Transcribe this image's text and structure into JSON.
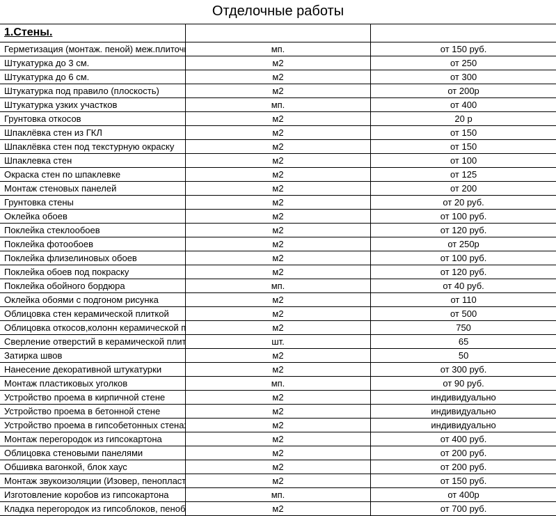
{
  "title": "Отделочные работы",
  "section": "1.Стены.",
  "columns": [
    "name",
    "unit",
    "price"
  ],
  "styling": {
    "background_color": "#ffffff",
    "border_color": "#000000",
    "title_fontsize": 20,
    "section_fontsize": 16,
    "body_fontsize": 13,
    "font_family": "Arial",
    "col_widths_pct": [
      62,
      13,
      25
    ]
  },
  "rows": [
    {
      "name": "Герметизация (монтаж. пеной) меж.плиточных швов",
      "unit": "мп.",
      "price": "от 150 руб."
    },
    {
      "name": "Штукатурка до 3 см.",
      "unit": "м2",
      "price": "от 250"
    },
    {
      "name": "Штукатурка до 6 см.",
      "unit": "м2",
      "price": "от 300"
    },
    {
      "name": "Штукатурка под правило (плоскость)",
      "unit": "м2",
      "price": "от 200р"
    },
    {
      "name": "Штукатурка узких участков",
      "unit": "мп.",
      "price": "от 400"
    },
    {
      "name": "Грунтовка откосов",
      "unit": "м2",
      "price": "20 р"
    },
    {
      "name": "Шпаклёвка стен из ГКЛ",
      "unit": "м2",
      "price": "от 150"
    },
    {
      "name": "Шпаклёвка стен под текстурную окраску",
      "unit": "м2",
      "price": "от 150"
    },
    {
      "name": "Шпаклевка стен",
      "unit": "м2",
      "price": "от 100"
    },
    {
      "name": "Окраска стен по шпаклевке",
      "unit": "м2",
      "price": "от 125"
    },
    {
      "name": "Монтаж стеновых панелей",
      "unit": "м2",
      "price": "от 200"
    },
    {
      "name": "Грунтовка стены",
      "unit": "м2",
      "price": "от 20 руб."
    },
    {
      "name": "Оклейка обоев",
      "unit": "м2",
      "price": "от 100 руб."
    },
    {
      "name": "Поклейка стеклообоев",
      "unit": "м2",
      "price": "от 120 руб."
    },
    {
      "name": "Поклейка фотообоев",
      "unit": "м2",
      "price": "от 250р"
    },
    {
      "name": "Поклейка флизелиновых обоев",
      "unit": "м2",
      "price": "от 100 руб."
    },
    {
      "name": "Поклейка обоев под покраску",
      "unit": "м2",
      "price": "от 120 руб."
    },
    {
      "name": "Поклейка обойного бордюра",
      "unit": "мп.",
      "price": "от 40 руб."
    },
    {
      "name": "Оклейка обоями с подгоном рисунка",
      "unit": "м2",
      "price": "от 110"
    },
    {
      "name": "Облицовка стен керамической плиткой",
      "unit": "м2",
      "price": "от 500"
    },
    {
      "name": "Облицовка откосов,колонн керамической плиткой",
      "unit": "м2",
      "price": "750"
    },
    {
      "name": "Сверление отверстий в керамической плитке",
      "unit": "шт.",
      "price": "65"
    },
    {
      "name": "Затирка швов",
      "unit": "м2",
      "price": "50"
    },
    {
      "name": "Нанесение декоративной штукатурки",
      "unit": "м2",
      "price": "от 300 руб."
    },
    {
      "name": "Монтаж пластиковых уголков",
      "unit": "мп.",
      "price": "от 90 руб."
    },
    {
      "name": "Устройство проема в кирпичной стене",
      "unit": "м2",
      "price": "индивидуально"
    },
    {
      "name": "Устройство проема в бетонной стене",
      "unit": "м2",
      "price": "индивидуально"
    },
    {
      "name": "Устройство проема в гипсобетонных стенах",
      "unit": "м2",
      "price": "индивидуально"
    },
    {
      "name": "Монтаж перегородок из гипсокартона",
      "unit": "м2",
      "price": "от 400 руб."
    },
    {
      "name": "Облицовка стеновыми панелями",
      "unit": "м2",
      "price": "от 200 руб."
    },
    {
      "name": "Обшивка вагонкой, блок хаус",
      "unit": "м2",
      "price": "от 200 руб."
    },
    {
      "name": "Монтаж звукоизоляции (Изовер, пенопласт,шуманет) или теплоизоляции",
      "unit": "м2",
      "price": "от 150 руб."
    },
    {
      "name": "Изготовление коробов из гипсокартона",
      "unit": "мп.",
      "price": "от 400р"
    },
    {
      "name": "Кладка перегородок из гипсоблоков, пеноблоков",
      "unit": "м2",
      "price": "от 700 руб."
    }
  ]
}
